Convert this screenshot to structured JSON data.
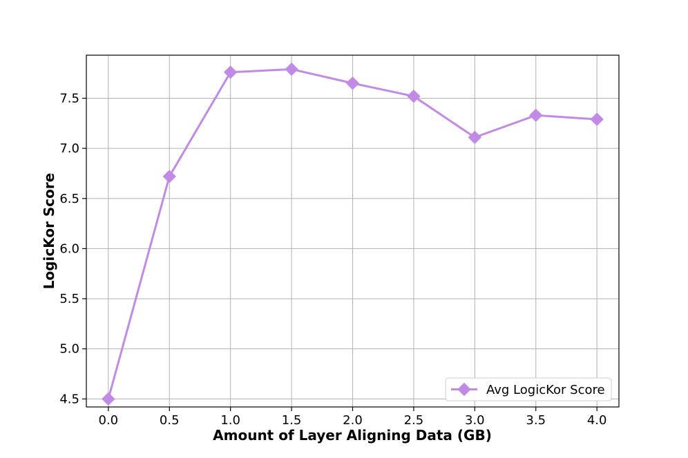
{
  "chart_data": {
    "type": "line",
    "title": "",
    "xlabel": "Amount of Layer Aligning Data (GB)",
    "ylabel": "LogicKor Score",
    "x": [
      0.0,
      0.5,
      1.0,
      1.5,
      2.0,
      2.5,
      3.0,
      3.5,
      4.0
    ],
    "xticks": [
      "0.0",
      "0.5",
      "1.0",
      "1.5",
      "2.0",
      "2.5",
      "3.0",
      "3.5",
      "4.0"
    ],
    "yticks": [
      "4.5",
      "5.0",
      "5.5",
      "6.0",
      "6.5",
      "7.0",
      "7.5"
    ],
    "xlim": [
      -0.18,
      4.18
    ],
    "ylim": [
      4.42,
      7.93
    ],
    "grid": true,
    "legend_position": "lower-right",
    "series": [
      {
        "name": "Avg LogicKor Score",
        "marker": "diamond",
        "color": "#c08ae6",
        "values": [
          4.5,
          6.72,
          7.76,
          7.79,
          7.65,
          7.52,
          7.11,
          7.33,
          7.29
        ]
      }
    ]
  }
}
